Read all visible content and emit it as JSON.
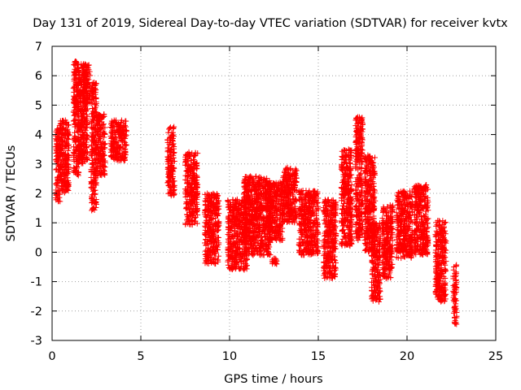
{
  "chart_data": {
    "type": "scatter",
    "title": "Day 131 of 2019, Sidereal Day-to-day VTEC variation (SDTVAR) for receiver kvtx",
    "xlabel": "GPS time / hours",
    "ylabel": "SDTVAR / TECUs",
    "xlim": [
      0,
      25
    ],
    "ylim": [
      -3,
      7
    ],
    "xticks": [
      0,
      5,
      10,
      15,
      20,
      25
    ],
    "yticks": [
      -3,
      -2,
      -1,
      0,
      1,
      2,
      3,
      4,
      5,
      6,
      7
    ],
    "grid": true,
    "marker": "+",
    "color": "#ff0000",
    "clusters": [
      {
        "x": [
          0.2,
          0.45
        ],
        "y": [
          1.7,
          4.2
        ]
      },
      {
        "x": [
          0.4,
          0.95
        ],
        "y": [
          2.0,
          4.5
        ]
      },
      {
        "x": [
          1.2,
          1.5
        ],
        "y": [
          2.6,
          6.5
        ]
      },
      {
        "x": [
          1.45,
          2.0
        ],
        "y": [
          3.0,
          6.4
        ]
      },
      {
        "x": [
          1.75,
          2.15
        ],
        "y": [
          5.0,
          6.4
        ]
      },
      {
        "x": [
          2.2,
          2.5
        ],
        "y": [
          1.4,
          5.8
        ]
      },
      {
        "x": [
          2.5,
          3.0
        ],
        "y": [
          2.6,
          4.7
        ]
      },
      {
        "x": [
          3.3,
          4.2
        ],
        "y": [
          3.1,
          4.5
        ]
      },
      {
        "x": [
          6.5,
          6.9
        ],
        "y": [
          1.9,
          4.3
        ]
      },
      {
        "x": [
          7.5,
          8.2
        ],
        "y": [
          0.9,
          3.4
        ]
      },
      {
        "x": [
          8.6,
          9.4
        ],
        "y": [
          -0.4,
          2.0
        ]
      },
      {
        "x": [
          9.9,
          11.0
        ],
        "y": [
          -0.6,
          1.8
        ]
      },
      {
        "x": [
          10.8,
          12.3
        ],
        "y": [
          -0.1,
          2.6
        ]
      },
      {
        "x": [
          12.1,
          13.0
        ],
        "y": [
          0.4,
          2.4
        ]
      },
      {
        "x": [
          12.4,
          12.7
        ],
        "y": [
          -0.4,
          -0.2
        ]
      },
      {
        "x": [
          13.0,
          13.8
        ],
        "y": [
          1.0,
          2.9
        ]
      },
      {
        "x": [
          13.9,
          15.0
        ],
        "y": [
          -0.1,
          2.1
        ]
      },
      {
        "x": [
          15.3,
          16.0
        ],
        "y": [
          -0.9,
          1.8
        ]
      },
      {
        "x": [
          16.3,
          16.9
        ],
        "y": [
          0.2,
          3.5
        ]
      },
      {
        "x": [
          17.1,
          17.5
        ],
        "y": [
          0.4,
          4.6
        ]
      },
      {
        "x": [
          17.6,
          18.2
        ],
        "y": [
          0.0,
          3.3
        ]
      },
      {
        "x": [
          18.0,
          18.5
        ],
        "y": [
          -1.7,
          1.0
        ]
      },
      {
        "x": [
          18.6,
          19.2
        ],
        "y": [
          -0.9,
          1.6
        ]
      },
      {
        "x": [
          19.4,
          20.3
        ],
        "y": [
          -0.2,
          2.1
        ]
      },
      {
        "x": [
          20.4,
          21.2
        ],
        "y": [
          -0.1,
          2.3
        ]
      },
      {
        "x": [
          21.6,
          22.2
        ],
        "y": [
          -1.7,
          1.1
        ]
      },
      {
        "x": [
          22.6,
          22.8
        ],
        "y": [
          -2.5,
          -0.4
        ]
      }
    ]
  }
}
